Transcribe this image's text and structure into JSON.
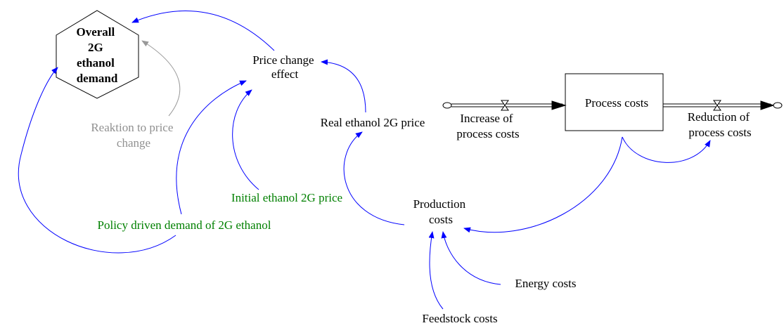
{
  "nodes": [
    {
      "lines": [
        "Overall",
        "2G",
        "ethanol",
        "demand"
      ]
    },
    {
      "lines": [
        "Price change",
        "effect"
      ]
    },
    {
      "lines": [
        "Reaktion to price",
        "change"
      ]
    },
    {
      "lines": [
        "Real ethanol 2G price"
      ]
    },
    {
      "lines": [
        "Initial ethanol 2G price"
      ]
    },
    {
      "lines": [
        "Policy driven demand of 2G ethanol"
      ]
    },
    {
      "lines": [
        "Production",
        "costs"
      ]
    },
    {
      "lines": [
        "Energy costs"
      ]
    },
    {
      "lines": [
        "Feedstock costs"
      ]
    },
    {
      "lines": [
        "Process costs"
      ]
    },
    {
      "lines": [
        "Increase of",
        "process costs"
      ]
    },
    {
      "lines": [
        "Reduction of",
        "process costs"
      ]
    }
  ]
}
